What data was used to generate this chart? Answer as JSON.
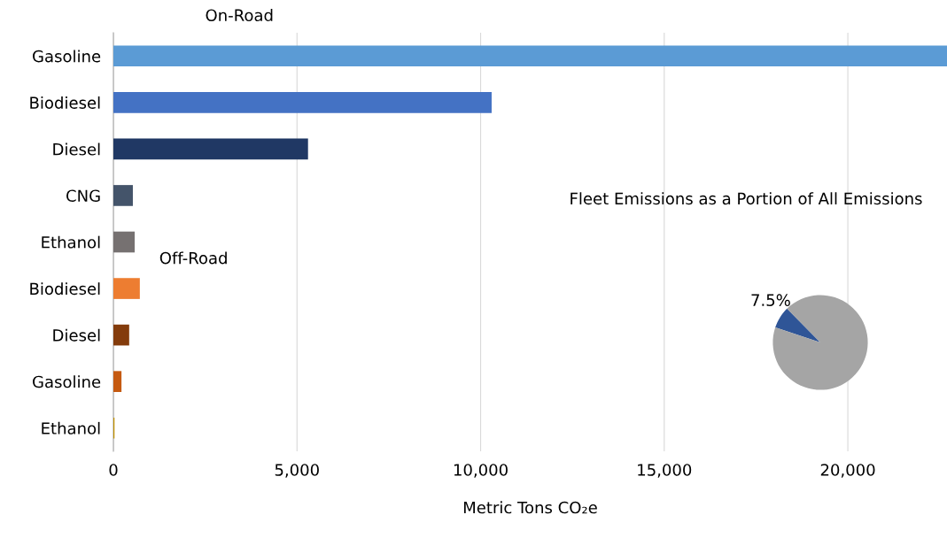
{
  "chart_data": [
    {
      "type": "bar",
      "orientation": "horizontal",
      "categories": [
        "Gasoline",
        "Biodiesel",
        "Diesel",
        "CNG",
        "Ethanol",
        "Biodiesel",
        "Diesel",
        "Gasoline",
        "Ethanol"
      ],
      "values": [
        22700,
        10300,
        5300,
        530,
        580,
        720,
        430,
        220,
        30
      ],
      "colors": [
        "#5b9bd5",
        "#4472c4",
        "#203864",
        "#44546a",
        "#767171",
        "#ed7d31",
        "#843c0c",
        "#c55a11",
        "#bf9000"
      ],
      "xlim": [
        0,
        22700
      ],
      "xticks": [
        {
          "value": 0,
          "label": "0"
        },
        {
          "value": 5000,
          "label": "5,000"
        },
        {
          "value": 10000,
          "label": "10,000"
        },
        {
          "value": 15000,
          "label": "15,000"
        },
        {
          "value": 20000,
          "label": "20,000"
        }
      ],
      "xlabel": "Metric Tons CO₂e",
      "grid": "x",
      "legend": false,
      "annotations": [
        "On-Road",
        "Off-Road"
      ]
    },
    {
      "type": "pie",
      "title": "Fleet Emissions as a Portion of All Emissions",
      "categories": [
        null,
        null
      ],
      "values": [
        7.5,
        92.5
      ],
      "colors": [
        "#2f5597",
        "#a5a5a5"
      ],
      "value_labels": [
        "7.5%",
        null
      ],
      "legend": false
    }
  ]
}
